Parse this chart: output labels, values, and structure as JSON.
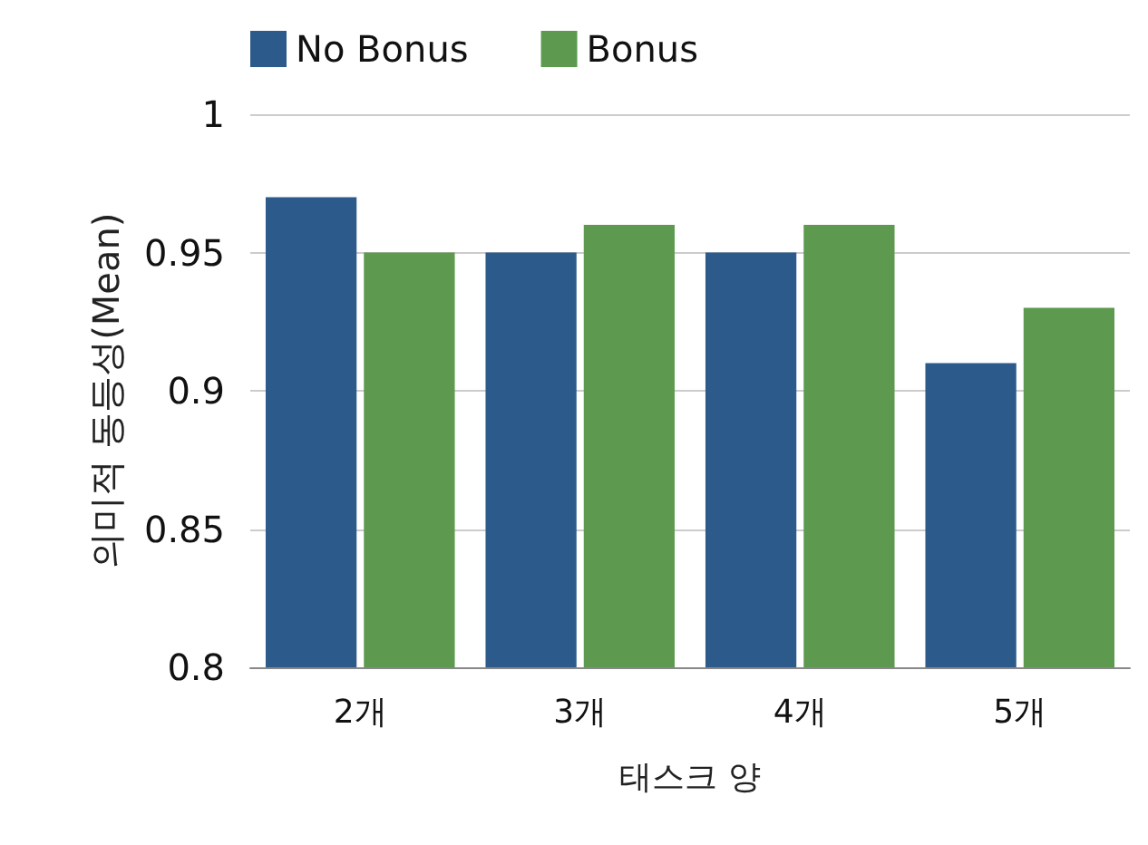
{
  "chart_data": {
    "type": "bar",
    "xlabel": "태스크 양",
    "ylabel": "의미적 동등성(Mean)",
    "categories": [
      "2개",
      "3개",
      "4개",
      "5개"
    ],
    "series": [
      {
        "name": "No Bonus",
        "color": "#2b5a8b",
        "values": [
          0.97,
          0.95,
          0.95,
          0.91
        ]
      },
      {
        "name": "Bonus",
        "color": "#5d9a4f",
        "values": [
          0.95,
          0.96,
          0.96,
          0.93
        ]
      }
    ],
    "ylim": [
      0.8,
      1
    ],
    "yticks": [
      0.8,
      0.85,
      0.9,
      0.95,
      1
    ],
    "grid": "y",
    "legend": "top left"
  }
}
